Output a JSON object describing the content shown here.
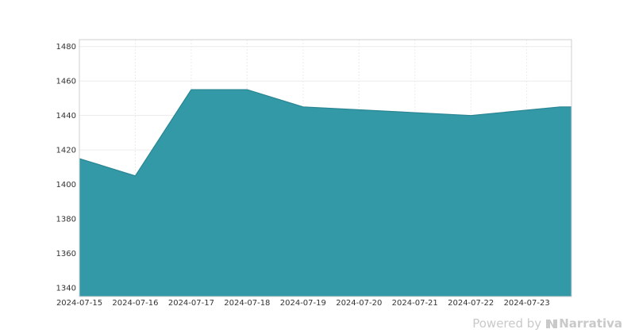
{
  "chart_data": {
    "type": "area",
    "x": [
      "2024-07-15",
      "2024-07-16",
      "2024-07-17",
      "2024-07-18",
      "2024-07-19",
      "2024-07-22",
      "2024-07-23.6"
    ],
    "series": [
      {
        "values": [
          1415,
          1405,
          1455,
          1455,
          1445,
          1440,
          1445
        ]
      }
    ],
    "x_ticks": [
      "2024-07-15",
      "2024-07-16",
      "2024-07-17",
      "2024-07-18",
      "2024-07-19",
      "2024-07-20",
      "2024-07-21",
      "2024-07-22",
      "2024-07-23"
    ],
    "y_ticks": [
      1340,
      1360,
      1380,
      1400,
      1420,
      1440,
      1460,
      1480
    ],
    "xlim": [
      "2024-07-15",
      "2024-07-23.8"
    ],
    "ylim": [
      1335,
      1484
    ],
    "grid": true,
    "fill_color": "#3399a6",
    "line_color": "#2a8593",
    "title": "",
    "xlabel": "",
    "ylabel": ""
  },
  "watermark": {
    "prefix": "Powered by",
    "brand": "Narrativa",
    "brand_icon": "narrativa-logo-icon"
  }
}
